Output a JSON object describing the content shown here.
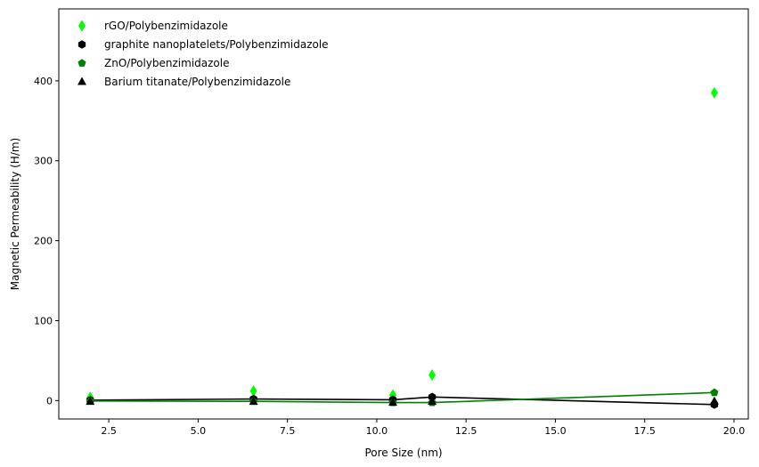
{
  "chart_data": {
    "type": "scatter",
    "xlabel": "Pore Size (nm)",
    "ylabel": "Magnetic Permeability (H/m)",
    "xlim": [
      1.1,
      20.4
    ],
    "ylim": [
      -23,
      490
    ],
    "xticks": [
      2.5,
      5.0,
      7.5,
      10.0,
      12.5,
      15.0,
      17.5,
      20.0
    ],
    "xtick_labels": [
      "2.5",
      "5.0",
      "7.5",
      "10.0",
      "12.5",
      "15.0",
      "17.5",
      "20.0"
    ],
    "yticks": [
      0,
      100,
      200,
      300,
      400
    ],
    "ytick_labels": [
      "0",
      "100",
      "200",
      "300",
      "400"
    ],
    "grid": false,
    "legend_position": "top-left",
    "series": [
      {
        "name": "rGO/Polybenzimidazole",
        "marker": "diamond",
        "color": "#00ff00",
        "line": false,
        "x": [
          1.98,
          6.55,
          10.45,
          11.55,
          19.45
        ],
        "y": [
          4,
          12,
          7,
          32,
          385
        ]
      },
      {
        "name": "graphite nanoplatelets/Polybenzimidazole",
        "marker": "hexagon",
        "color": "#000000",
        "line": true,
        "x": [
          1.98,
          6.55,
          10.45,
          11.55,
          19.45
        ],
        "y": [
          0.5,
          2,
          1,
          4.5,
          -5
        ]
      },
      {
        "name": "ZnO/Polybenzimidazole",
        "marker": "pentagon",
        "color": "#008000",
        "line": true,
        "x": [
          1.98,
          6.55,
          10.45,
          11.55,
          19.45
        ],
        "y": [
          -0.5,
          -1,
          -2.5,
          -2.5,
          10
        ]
      },
      {
        "name": "Barium titanate/Polybenzimidazole",
        "marker": "triangle",
        "color": "#000000",
        "line": false,
        "x": [
          1.98,
          6.55,
          10.45,
          11.55,
          19.45
        ],
        "y": [
          -1.5,
          -1.5,
          -2.5,
          -1.5,
          -1
        ]
      }
    ]
  }
}
